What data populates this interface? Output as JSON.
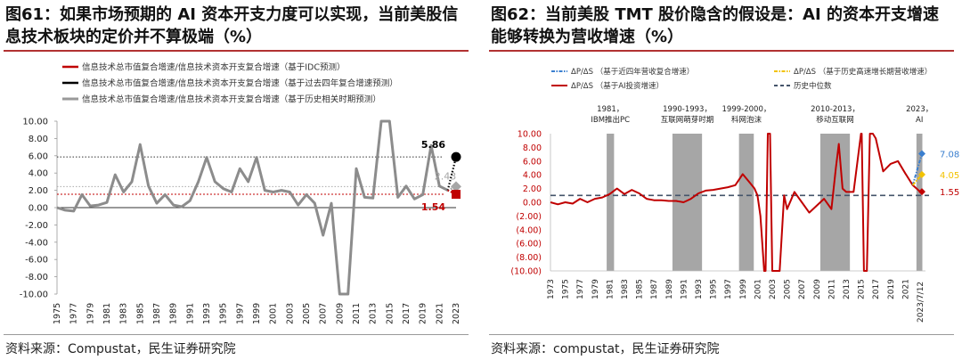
{
  "left": {
    "title": "图61：如果市场预期的 AI 资本开支力度可以实现，当前美股信息技术板块的定价并不算极端（%）",
    "source": "资料来源：Compustat，民生证券研究院",
    "chart_data": {
      "type": "line",
      "title": "",
      "ylim": [
        -10,
        10
      ],
      "yticks": [
        "10.00",
        "8.00",
        "6.00",
        "4.00",
        "2.00",
        "0.00",
        "-2.00",
        "-4.00",
        "-6.00",
        "-8.00",
        "-10.00"
      ],
      "xticks": [
        "1975",
        "1977",
        "1979",
        "1981",
        "1983",
        "1985",
        "1987",
        "1989",
        "1991",
        "1993",
        "1995",
        "1997",
        "1999",
        "2001",
        "2003",
        "2005",
        "2007",
        "2009",
        "2011",
        "2013",
        "2015",
        "2017",
        "2019",
        "2021",
        "2023"
      ],
      "legend": [
        {
          "label": "信息技术总市值复合增速/信息技术资本开支复合增速（基于IDC预测）",
          "color": "#c00000",
          "marker": "square"
        },
        {
          "label": "信息技术总市值复合增速/信息技术资本开支复合增速（基于过去四年复合增速预测）",
          "color": "#000000",
          "marker": "circle"
        },
        {
          "label": "信息技术总市值复合增速/信息技术资本开支复合增速（基于历史相关时期预测）",
          "color": "#999999",
          "marker": "diamond"
        }
      ],
      "series": [
        {
          "name": "信息技术总市值复合增速/信息技术资本开支复合增速",
          "color": "#8c8c8c",
          "x": [
            1975,
            1976,
            1977,
            1978,
            1979,
            1980,
            1981,
            1982,
            1983,
            1984,
            1985,
            1986,
            1987,
            1988,
            1989,
            1990,
            1991,
            1992,
            1993,
            1994,
            1995,
            1996,
            1997,
            1998,
            1999,
            2000,
            2001,
            2002,
            2003,
            2004,
            2005,
            2006,
            2007,
            2008,
            2009,
            2010,
            2011,
            2012,
            2013,
            2014,
            2015,
            2016,
            2017,
            2018,
            2019,
            2020,
            2021,
            2022
          ],
          "y": [
            0,
            -0.3,
            -0.4,
            1.5,
            0.2,
            0.3,
            0.6,
            3.8,
            1.8,
            3.0,
            7.3,
            2.5,
            0.5,
            1.5,
            0.3,
            0.1,
            0.8,
            3.0,
            5.8,
            3.0,
            2.2,
            1.8,
            4.5,
            3.0,
            5.8,
            2.0,
            1.8,
            2.0,
            1.8,
            0.3,
            1.5,
            0.5,
            -3.2,
            0.5,
            -10,
            -10,
            4.5,
            1.2,
            1.1,
            10,
            10,
            1.2,
            2.5,
            1.0,
            1.5,
            7.2,
            2.5,
            2.0
          ]
        }
      ],
      "points": [
        {
          "label": "5.86",
          "value": 5.86,
          "color": "#000000",
          "marker": "circle"
        },
        {
          "label": "2.43",
          "value": 2.43,
          "color": "#999999",
          "marker": "diamond"
        },
        {
          "label": "1.54",
          "value": 1.54,
          "color": "#c00000",
          "marker": "square"
        }
      ]
    }
  },
  "right": {
    "title": "图62：当前美股 TMT 股价隐含的假设是：AI 的资本开支增速能够转换为营收增速（%）",
    "source": "资料来源：compustat，民生证券研究院",
    "chart_data": {
      "type": "line",
      "title": "",
      "ylim": [
        -10,
        10
      ],
      "yticks": [
        "10.00",
        "8.00",
        "6.00",
        "4.00",
        "2.00",
        "0.00",
        "(2.00)",
        "(4.00)",
        "(6.00)",
        "(8.00)",
        "(10.00)"
      ],
      "xticks": [
        "1973",
        "1975",
        "1977",
        "1979",
        "1981",
        "1983",
        "1985",
        "1987",
        "1989",
        "1991",
        "1993",
        "1995",
        "1997",
        "1999",
        "2001",
        "2003",
        "2005",
        "2007",
        "2009",
        "2011",
        "2013",
        "2015",
        "2017",
        "2019",
        "2021",
        "2023/7/12"
      ],
      "legend": [
        {
          "label": "ΔP/ΔS （基于近四年营收复合增速）",
          "color": "#3a7fcf",
          "style": "dash-dot"
        },
        {
          "label": "ΔP/ΔS （基于历史高速增长期营收增速）",
          "color": "#f2c200",
          "style": "dash-dot"
        },
        {
          "label": "ΔP/ΔS （基于AI投资增速）",
          "color": "#c00000",
          "style": "solid"
        },
        {
          "label": "历史中位数",
          "color": "#44546a",
          "style": "dashed"
        }
      ],
      "period_annotations": [
        "1981，IBM推出PC",
        "1990-1993，互联网萌芽时期",
        "1999-2000，科网泡沫",
        "2010-2013，移动互联网",
        "2023，AI"
      ],
      "median": 1.0,
      "series": [
        {
          "name": "ΔP/ΔS （基于AI投资增速）",
          "color": "#c00000",
          "x": [
            1973,
            1974,
            1975,
            1976,
            1977,
            1978,
            1979,
            1980,
            1981,
            1982,
            1983,
            1984,
            1985,
            1986,
            1987,
            1988,
            1989,
            1990,
            1991,
            1992,
            1993,
            1994,
            1995,
            1996,
            1997,
            1998,
            1999,
            2000,
            2000.6,
            2001,
            2001.4,
            2001.9,
            2002.1,
            2002.4,
            2002.7,
            2003,
            2004,
            2004.6,
            2005,
            2006,
            2007,
            2008,
            2009,
            2010,
            2011,
            2011.6,
            2012,
            2012.5,
            2013,
            2014,
            2015,
            2015.1,
            2015.4,
            2015.8,
            2016.2,
            2016.6,
            2017,
            2018,
            2019,
            2020,
            2021,
            2022,
            2023
          ],
          "y": [
            0,
            -0.3,
            0,
            -0.2,
            0.5,
            0,
            0.5,
            0.7,
            1.2,
            2.0,
            1.2,
            1.8,
            1.3,
            0.5,
            0.3,
            0.3,
            0.2,
            0.2,
            0,
            0.5,
            1.3,
            1.7,
            1.8,
            2.0,
            2.2,
            2.5,
            4.1,
            2.8,
            2.0,
            1.0,
            -2.0,
            -10.0,
            -10.0,
            10.0,
            10.0,
            -10.0,
            -10.0,
            1.0,
            -1.0,
            1.5,
            0,
            -1.5,
            -0.5,
            0.5,
            -1.0,
            5.0,
            8.5,
            2.0,
            1.5,
            1.5,
            10,
            10,
            -10,
            -10,
            10,
            10,
            9.3,
            4.5,
            5.6,
            6.0,
            4.2,
            2.5,
            1.55
          ]
        }
      ],
      "end_labels": [
        {
          "label": "7.08",
          "value": 7.08,
          "color": "#3a7fcf"
        },
        {
          "label": "4.05",
          "value": 4.05,
          "color": "#f2c200"
        },
        {
          "label": "1.55",
          "value": 1.55,
          "color": "#c00000"
        }
      ]
    }
  }
}
